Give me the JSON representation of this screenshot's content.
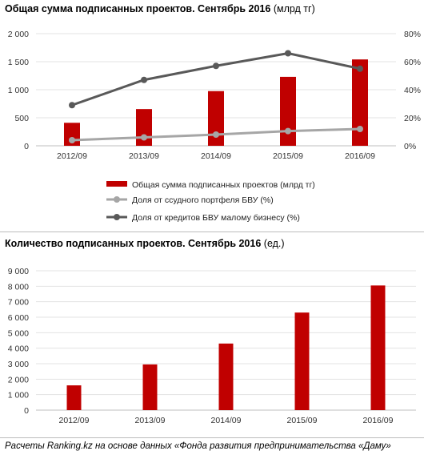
{
  "chart_data": [
    {
      "type": "bar",
      "title_bold": "Общая сумма подписанных проектов. Сентябрь 2016",
      "title_unit": "(млрд тг)",
      "categories": [
        "2012/09",
        "2013/09",
        "2014/09",
        "2015/09",
        "2016/09"
      ],
      "series": [
        {
          "name": "Общая сумма подписанных проектов (млрд тг)",
          "kind": "bar",
          "axis": "left",
          "values": [
            410,
            655,
            975,
            1230,
            1540
          ]
        },
        {
          "name": "Доля от ссудного портфеля БВУ (%)",
          "kind": "line",
          "axis": "right",
          "values": [
            4,
            6,
            8,
            10.5,
            12
          ]
        },
        {
          "name": "Доля от кредитов БВУ малому бизнесу (%)",
          "kind": "line",
          "axis": "right",
          "values": [
            29,
            47,
            57,
            66,
            55
          ]
        }
      ],
      "left_axis": {
        "ticks": [
          "0",
          "500",
          "1 000",
          "1 500",
          "2 000"
        ],
        "ylim": [
          0,
          2000
        ]
      },
      "right_axis": {
        "ticks": [
          "0%",
          "20%",
          "40%",
          "60%",
          "80%"
        ],
        "ylim": [
          0,
          80
        ]
      },
      "colors": {
        "bar": "#c00000",
        "line_light": "#a6a6a6",
        "line_dark": "#595959"
      },
      "legend_position": "bottom"
    },
    {
      "type": "bar",
      "title_bold": "Количество подписанных проектов. Сентябрь 2016",
      "title_unit": "(ед.)",
      "categories": [
        "2012/09",
        "2013/09",
        "2014/09",
        "2015/09",
        "2016/09"
      ],
      "values": [
        1600,
        2950,
        4300,
        6300,
        8050
      ],
      "left_axis": {
        "ticks": [
          "0",
          "1 000",
          "2 000",
          "3 000",
          "4 000",
          "5 000",
          "6 000",
          "7 000",
          "8 000",
          "9 000"
        ],
        "ylim": [
          0,
          9000
        ]
      },
      "colors": {
        "bar": "#c00000"
      }
    }
  ],
  "footer": "Расчеты Ranking.kz на основе данных «Фонда развития предпринимательства «Даму»"
}
